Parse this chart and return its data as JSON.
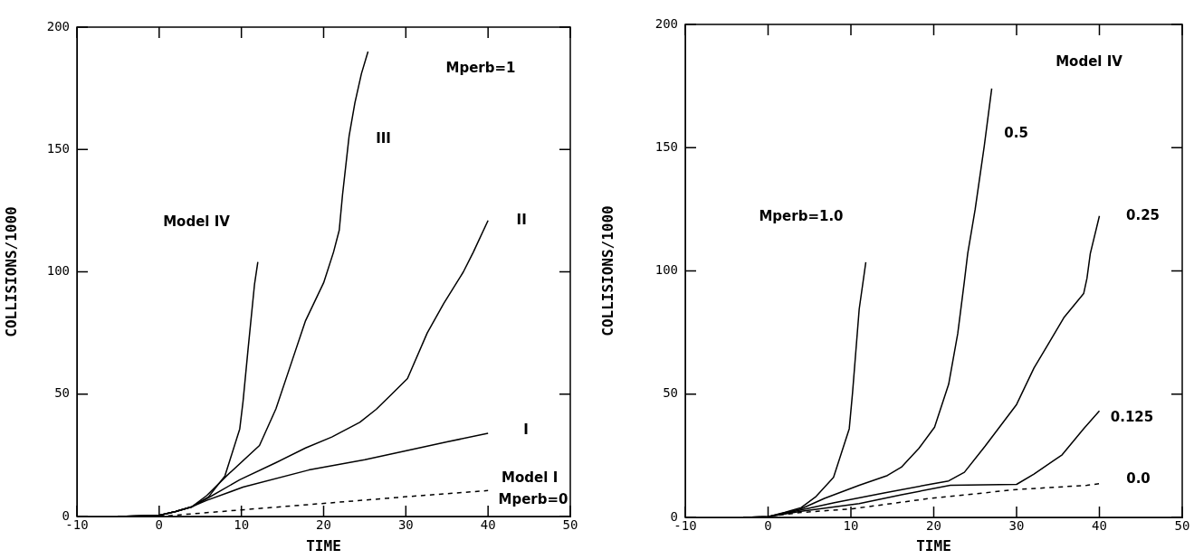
{
  "chart_data": [
    {
      "type": "line",
      "xlabel": "TIME",
      "ylabel": "COLLISIONS/1000",
      "xlim": [
        -10,
        50
      ],
      "xticks": [
        -10,
        0,
        10,
        20,
        30,
        40,
        50
      ],
      "ylim": [
        0,
        200
      ],
      "yticks": [
        0,
        50,
        100,
        150,
        200
      ],
      "grid": false,
      "legend": false,
      "marker": "none",
      "series": [
        {
          "color": "#000000",
          "line_style": "solid",
          "x": [
            -5,
            0,
            2,
            4,
            6,
            8,
            9.8,
            10.2,
            10.8,
            11.6,
            12
          ],
          "values": [
            0,
            0.5,
            2,
            4,
            8,
            16.6,
            35.8,
            47,
            68,
            95,
            104
          ]
        },
        {
          "name": "III",
          "color": "#000000",
          "line_style": "solid",
          "x": [
            -5,
            0,
            2,
            4,
            5.8,
            8.2,
            12.2,
            14.2,
            16.2,
            17.8,
            20,
            21.2,
            21.9,
            22.3,
            23.1,
            23.8,
            24.6,
            25.4
          ],
          "values": [
            0,
            0.5,
            2,
            4,
            8.6,
            16.6,
            29,
            44,
            64,
            80,
            95.5,
            108,
            117,
            131.5,
            155.5,
            169,
            181,
            190
          ]
        },
        {
          "name": "II",
          "color": "#000000",
          "line_style": "solid",
          "x": [
            -5,
            0,
            2,
            4,
            5.8,
            9.8,
            14.2,
            17.8,
            21,
            24.4,
            26.4,
            28.2,
            30.2,
            32.6,
            34.6,
            37,
            38.2,
            40
          ],
          "values": [
            0,
            0.5,
            2,
            4,
            7.3,
            15,
            22,
            28,
            32.5,
            38.5,
            43.8,
            49.7,
            56.4,
            75,
            87,
            100,
            108,
            121
          ]
        },
        {
          "name": "I",
          "color": "#000000",
          "line_style": "solid",
          "x": [
            -5,
            0,
            2,
            4,
            5.8,
            10.2,
            18.2,
            25,
            30.2,
            35,
            40
          ],
          "values": [
            0,
            0.5,
            2,
            4,
            6.6,
            12,
            19,
            23.2,
            27,
            30.5,
            34
          ]
        },
        {
          "name": "Model I",
          "color": "#000000",
          "line_style": "dashed",
          "x": [
            0,
            10,
            19.8,
            29.8,
            40
          ],
          "values": [
            0,
            2.7,
            5.3,
            8,
            10.6
          ]
        }
      ],
      "annotations": [
        "Model IV",
        "Mperb=1",
        "Mperb=0"
      ]
    },
    {
      "type": "line",
      "xlabel": "TIME",
      "ylabel": "COLLISIONS/1000",
      "xlim": [
        -10,
        50
      ],
      "xticks": [
        -10,
        0,
        10,
        20,
        30,
        40,
        50
      ],
      "ylim": [
        0,
        200
      ],
      "yticks": [
        0,
        50,
        100,
        150,
        200
      ],
      "grid": false,
      "legend": false,
      "marker": "none",
      "series": [
        {
          "color": "#000000",
          "line_style": "solid",
          "x": [
            -3,
            0,
            2,
            4,
            5.8,
            7.9,
            9.8,
            10.2,
            11,
            11.8
          ],
          "values": [
            0,
            0.3,
            2,
            4,
            8.5,
            16.2,
            36,
            50.7,
            84.5,
            103.5
          ]
        },
        {
          "name": "0.5",
          "color": "#000000",
          "line_style": "solid",
          "x": [
            -3,
            0,
            2,
            4,
            6.8,
            11,
            14.4,
            16.1,
            18.2,
            20.1,
            21.8,
            22.9,
            23.7,
            24.1,
            25,
            26.1,
            27
          ],
          "values": [
            0,
            0.3,
            1.8,
            3.5,
            7.7,
            13,
            17,
            20.4,
            28,
            36.6,
            54,
            74.6,
            95.8,
            107,
            125,
            150.7,
            174
          ]
        },
        {
          "name": "0.25",
          "color": "#000000",
          "line_style": "solid",
          "x": [
            -3,
            0,
            2,
            4,
            8,
            14,
            19.5,
            21.8,
            23.7,
            26.2,
            30,
            32.1,
            33.6,
            35.7,
            38.1,
            38.5,
            38.9,
            40
          ],
          "values": [
            0,
            0.3,
            1.6,
            3,
            6,
            9.9,
            13.4,
            14.8,
            18.3,
            28.9,
            45.8,
            60.6,
            69,
            81,
            90.8,
            97,
            107,
            122.3
          ]
        },
        {
          "name": "0.125",
          "color": "#000000",
          "line_style": "solid",
          "x": [
            -3,
            0,
            2,
            4,
            11,
            16.1,
            22,
            30,
            32.1,
            35.5,
            38.1,
            40
          ],
          "values": [
            0,
            0.3,
            1.4,
            2.5,
            5.6,
            9.2,
            13,
            13.4,
            17.6,
            25.4,
            36,
            43.2
          ]
        },
        {
          "name": "0.0",
          "color": "#000000",
          "line_style": "dashed",
          "x": [
            -3,
            0,
            2,
            4,
            10.2,
            19.5,
            30,
            38.5,
            40
          ],
          "values": [
            0,
            0.2,
            1.2,
            2,
            3.5,
            7.7,
            11.3,
            13,
            13.7
          ]
        }
      ],
      "annotations": [
        "Model IV",
        "Mperb=1.0"
      ]
    }
  ]
}
